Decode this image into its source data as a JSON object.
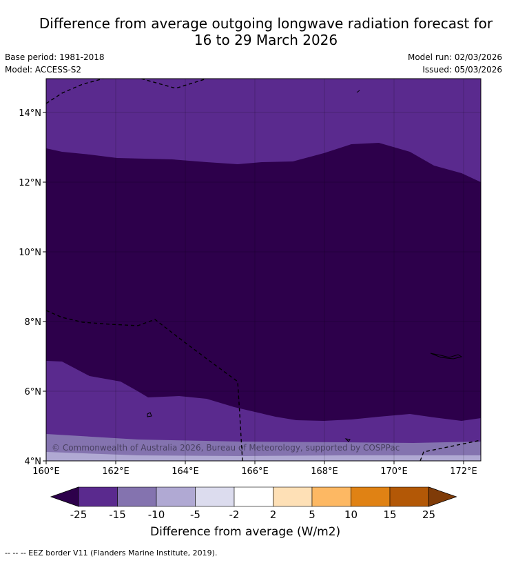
{
  "header": {
    "title_line1": "Difference from average outgoing longwave radiation forecast for",
    "title_line2": "16 to 29 March 2026",
    "base_period": "Base period: 1981-2018",
    "model": "Model: ACCESS-S2",
    "model_run": "Model run: 02/03/2026",
    "issued": "Issued: 05/03/2026"
  },
  "map": {
    "lat_ticks": [
      "14°N",
      "12°N",
      "10°N",
      "8°N",
      "6°N",
      "4°N"
    ],
    "lon_ticks": [
      "160°E",
      "162°E",
      "164°E",
      "166°E",
      "168°E",
      "170°E",
      "172°E"
    ],
    "copyright": "© Commonwealth of Australia 2026, Bureau of Meteorology, supported by COSPPac"
  },
  "colorbar": {
    "tick_labels": [
      "-25",
      "-15",
      "-10",
      "-5",
      "-2",
      "2",
      "5",
      "10",
      "15",
      "25"
    ],
    "colors": [
      "#5a2a8e",
      "#8473af",
      "#b0a9d3",
      "#dcdcee",
      "#ffffff",
      "#fee0b6",
      "#fdb863",
      "#e08214",
      "#b35806"
    ],
    "under_color": "#2d004b",
    "over_color": "#7f3b08",
    "label": "Difference from average (W/m2)"
  },
  "footer": {
    "legend": "--  --  -- EEZ border V11 (Flanders Marine Institute, 2019)."
  }
}
